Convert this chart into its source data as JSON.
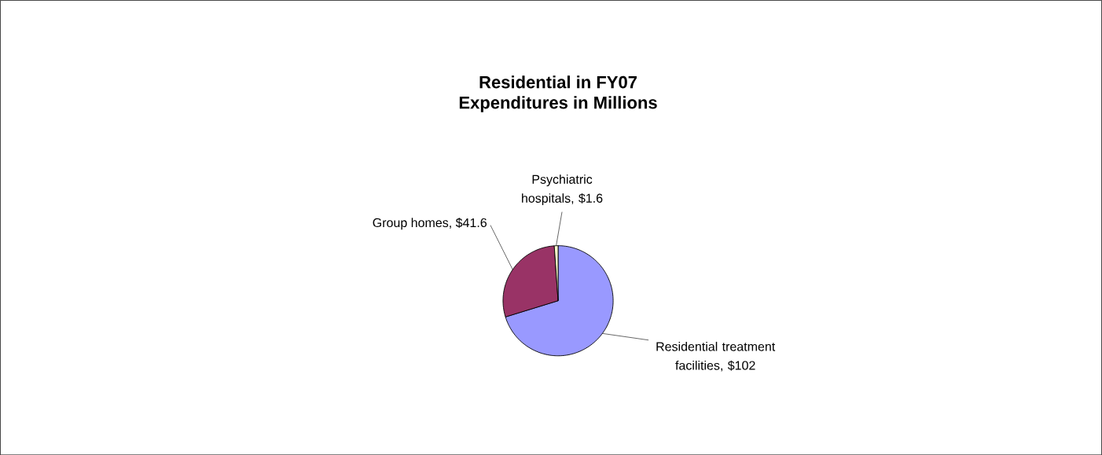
{
  "chart_data": {
    "type": "pie",
    "title": "Residential in FY07",
    "subtitle": "Expenditures in Millions",
    "categories": [
      "Residential treatment facilities, $102",
      "Group homes, $41.6",
      "Psychiatric hospitals, $1.6"
    ],
    "values": [
      102,
      41.6,
      1.6
    ],
    "colors": [
      "#9999ff",
      "#993366",
      "#ffffcc"
    ]
  }
}
